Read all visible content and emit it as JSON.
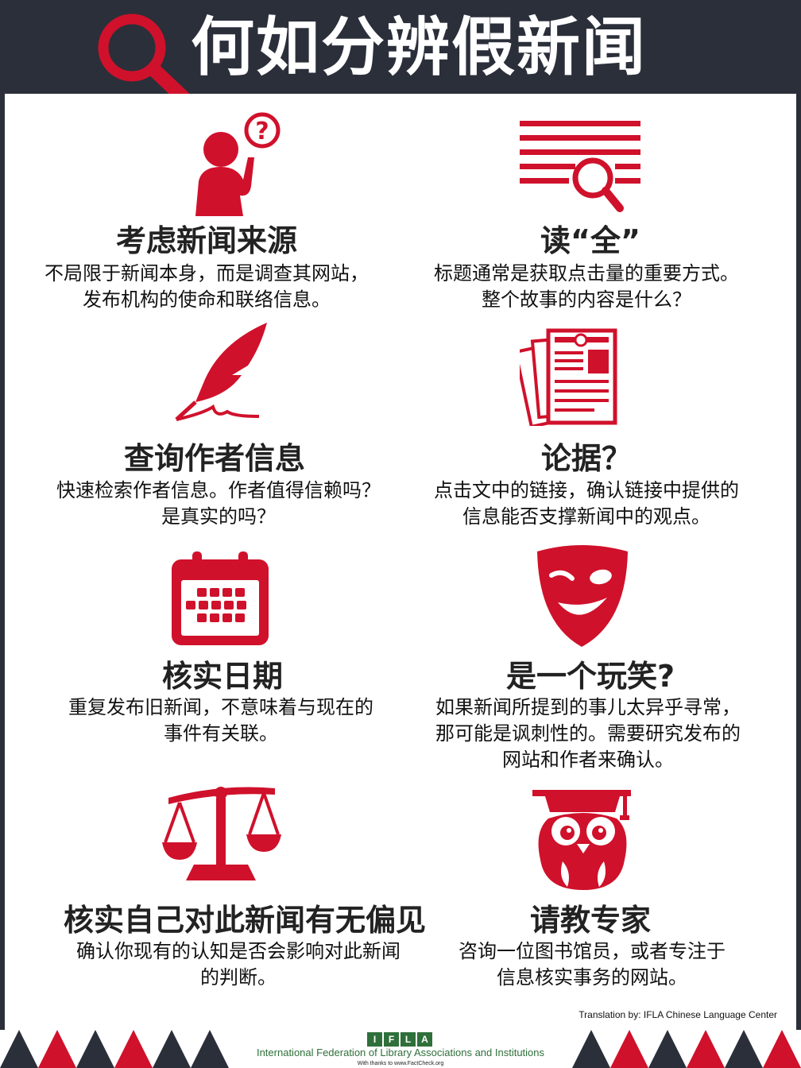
{
  "title": "何如分辨假新闻",
  "colors": {
    "accent": "#d0112b",
    "dark": "#2b2f3a"
  },
  "tips": [
    {
      "icon": "thinking-person-icon",
      "heading": "考虑新闻来源",
      "lines": [
        "不局限于新闻本身，而是调查其网站，",
        "发布机构的使命和联络信息。"
      ]
    },
    {
      "icon": "read-magnifier-icon",
      "heading": "读“全”",
      "lines": [
        "标题通常是获取点击量的重要方式。",
        "整个故事的内容是什么？"
      ]
    },
    {
      "icon": "quill-pen-icon",
      "heading": "查询作者信息",
      "lines": [
        "快速检索作者信息。作者值得信赖吗？",
        "是真实的吗？"
      ]
    },
    {
      "icon": "documents-icon",
      "heading": "论据？",
      "lines": [
        "点击文中的链接，确认链接中提供的",
        "信息能否支撑新闻中的观点。"
      ]
    },
    {
      "icon": "calendar-icon",
      "heading": "核实日期",
      "lines": [
        "重复发布旧新闻，不意味着与现在的",
        "事件有关联。"
      ]
    },
    {
      "icon": "joke-mask-icon",
      "heading": "是一个玩笑?",
      "lines": [
        "如果新闻所提到的事儿太异乎寻常，",
        "那可能是讽刺性的。需要研究发布的",
        "网站和作者来确认。"
      ]
    },
    {
      "icon": "scales-icon",
      "heading": "核实自己对此新闻有无偏见",
      "lines": [
        "确认你现有的认知是否会影响对此新闻",
        "的判断。"
      ]
    },
    {
      "icon": "graduate-owl-icon",
      "heading": "请教专家",
      "lines": [
        "咨询一位图书馆员，或者专注于",
        "信息核实事务的网站。"
      ]
    }
  ],
  "credit": "Translation by: IFLA Chinese Language Center",
  "footer": {
    "logo_letters": [
      "I",
      "F",
      "L",
      "A"
    ],
    "org_name": "International Federation of Library Associations and Institutions",
    "thanks": "With thanks to www.FactCheck.org"
  }
}
